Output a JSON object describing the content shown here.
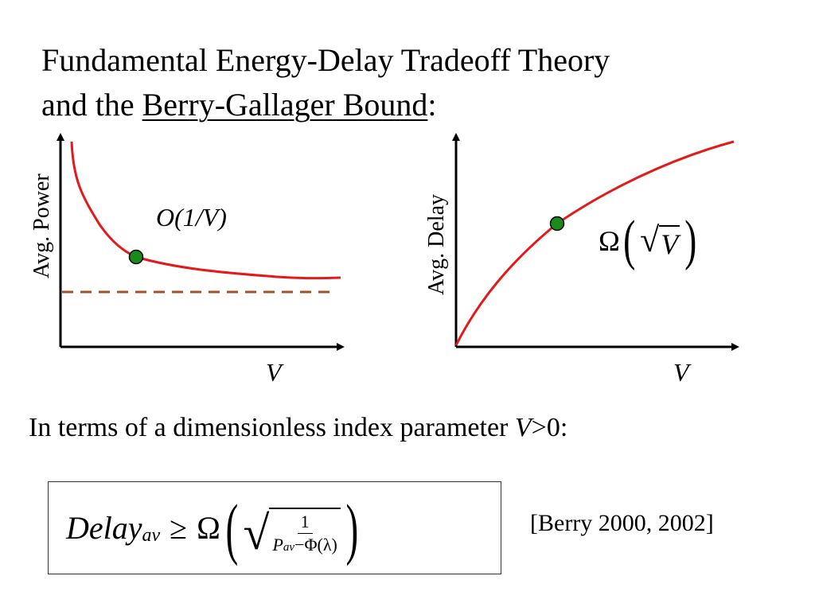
{
  "title": {
    "line1": "Fundamental Energy-Delay Tradeoff Theory",
    "line2_prefix": "and the ",
    "line2_link": "Berry-Gallager Bound",
    "line2_suffix": ":"
  },
  "left_plot": {
    "ylabel": "Avg. Power",
    "xlabel": "V",
    "annotation": "O(1/V)",
    "colors": {
      "curve": "#e41a1a",
      "asymptote": "#a0522d",
      "point": "#1a8a1a"
    }
  },
  "right_plot": {
    "ylabel": "Avg. Delay",
    "xlabel": "V",
    "annotation": {
      "omega": "Ω",
      "open_paren": "(",
      "radical": "√",
      "radicand": "V",
      "close_paren": ")"
    },
    "colors": {
      "curve": "#e41a1a",
      "point": "#1a8a1a"
    }
  },
  "subtitle": {
    "prefix": "In terms of a dimensionless index parameter ",
    "var": "V",
    "suffix": ">0:"
  },
  "formula": {
    "lhs": "Delay",
    "lhs_sub": "av",
    "geq": "≥",
    "omega": "Ω",
    "open_paren": "(",
    "radical": "√",
    "numerator": "1",
    "den_p": "P",
    "den_sub": "av",
    "den_rest": "−Φ(λ)",
    "close_paren": ")"
  },
  "citation": "[Berry 2000, 2002]"
}
